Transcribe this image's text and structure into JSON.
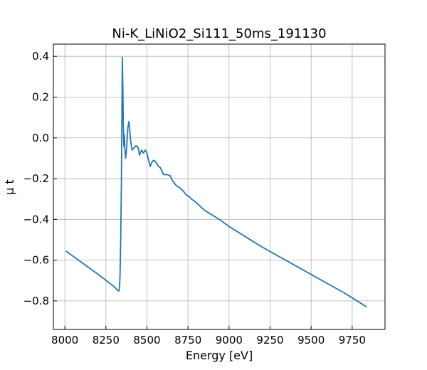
{
  "chart_data": {
    "type": "line",
    "title": "Ni-K_LiNiO2_Si111_50ms_191130",
    "xlabel": "Energy [eV]",
    "ylabel": "μ t",
    "xlim": [
      7930,
      9950
    ],
    "ylim": [
      -0.94,
      0.46
    ],
    "x_ticks": [
      8000,
      8250,
      8500,
      8750,
      9000,
      9250,
      9500,
      9750
    ],
    "x_tick_labels": [
      "8000",
      "8250",
      "8500",
      "8750",
      "9000",
      "9250",
      "9500",
      "9750"
    ],
    "y_ticks": [
      0.4,
      0.2,
      0.0,
      -0.2,
      -0.4,
      -0.6,
      -0.8
    ],
    "y_tick_labels": [
      "0.4",
      "0.2",
      "0.0",
      "−0.2",
      "−0.4",
      "−0.6",
      "−0.8"
    ],
    "grid": true,
    "line_color": "#1f77b4",
    "series": [
      {
        "x": [
          8006,
          8100,
          8200,
          8260,
          8300,
          8318,
          8325,
          8328,
          8330,
          8333,
          8336,
          8340,
          8344,
          8347,
          8350,
          8353,
          8356,
          8359,
          8362,
          8365,
          8370,
          8375,
          8380,
          8384,
          8390,
          8394,
          8400,
          8405,
          8410,
          8420,
          8430,
          8440,
          8448,
          8455,
          8462,
          8468,
          8478,
          8490,
          8500,
          8510,
          8520,
          8530,
          8540,
          8550,
          8560,
          8570,
          8580,
          8590,
          8600,
          8620,
          8640,
          8655,
          8670,
          8680,
          8690,
          8700,
          8720,
          8740,
          8750,
          8760,
          8770,
          8790,
          8810,
          8830,
          8850,
          8880,
          8910,
          8950,
          9000,
          9050,
          9100,
          9150,
          9200,
          9300,
          9400,
          9500,
          9600,
          9700,
          9800,
          9840
        ],
        "y": [
          -0.555,
          -0.61,
          -0.668,
          -0.705,
          -0.73,
          -0.745,
          -0.75,
          -0.752,
          -0.748,
          -0.73,
          -0.67,
          -0.5,
          -0.25,
          0.05,
          0.395,
          0.25,
          0.05,
          -0.04,
          0.015,
          -0.05,
          -0.1,
          -0.06,
          0.0,
          0.05,
          0.08,
          0.055,
          -0.01,
          -0.04,
          -0.06,
          -0.05,
          -0.04,
          -0.04,
          -0.055,
          -0.085,
          -0.07,
          -0.06,
          -0.075,
          -0.06,
          -0.075,
          -0.11,
          -0.14,
          -0.12,
          -0.11,
          -0.115,
          -0.125,
          -0.14,
          -0.145,
          -0.16,
          -0.18,
          -0.18,
          -0.185,
          -0.21,
          -0.225,
          -0.235,
          -0.24,
          -0.245,
          -0.26,
          -0.28,
          -0.285,
          -0.29,
          -0.3,
          -0.31,
          -0.325,
          -0.34,
          -0.355,
          -0.37,
          -0.385,
          -0.405,
          -0.435,
          -0.46,
          -0.485,
          -0.51,
          -0.535,
          -0.58,
          -0.625,
          -0.67,
          -0.715,
          -0.76,
          -0.81,
          -0.83
        ]
      }
    ]
  }
}
